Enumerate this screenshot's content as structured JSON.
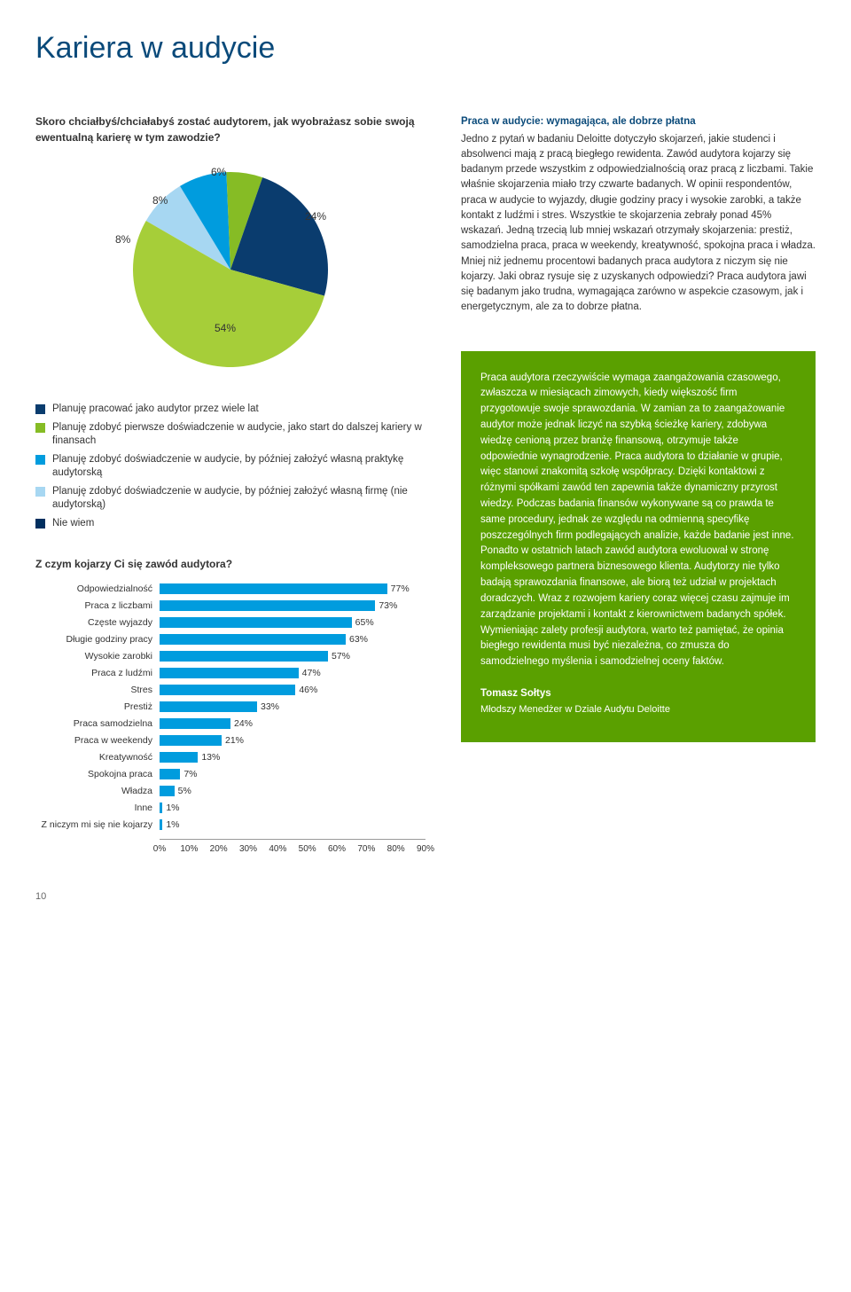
{
  "page_title": "Kariera w audycie",
  "pie": {
    "title": "Skoro chciałbyś/chciałabyś zostać audytorem, jak wyobrażasz sobie swoją ewentualną karierę w tym zawodzie?",
    "slices": [
      {
        "label": "Planuję pracować jako audytor przez wiele lat",
        "value": 54,
        "color": "#0a3c6e"
      },
      {
        "label": "Planuję zdobyć pierwsze doświadczenie w audycie, jako start do dalszej kariery w finansach",
        "value": 24,
        "color": "#86bc25"
      },
      {
        "label": "Planuję zdobyć doświadczenie w audycie, by później założyć własną praktykę audytorską",
        "value": 6,
        "color": "#009cde"
      },
      {
        "label": "Planuję zdobyć doświadczenie w audycie, by później założyć własną firmę (nie audytorską)",
        "value": 8,
        "color": "#a7d7f2"
      },
      {
        "label": "Nie wiem",
        "value": 8,
        "color": "#002f5f"
      }
    ],
    "label_fontsize": 12
  },
  "body1": {
    "lead": "Praca w audycie: wymagająca, ale dobrze płatna",
    "text": "Jedno z pytań w badaniu Deloitte dotyczyło skojarzeń, jakie studenci i absolwenci mają z pracą biegłego rewidenta. Zawód audytora kojarzy się badanym przede wszystkim z odpowiedzialnością oraz pracą z liczbami. Takie właśnie skojarzenia miało trzy czwarte badanych. W opinii respondentów, praca w audycie to wyjazdy, długie godziny pracy i wysokie zarobki, a także kontakt z ludźmi i stres. Wszystkie te skojarzenia zebrały ponad 45% wskazań. Jedną trzecią lub mniej wskazań otrzymały skojarzenia: prestiż, samodzielna praca, praca w weekendy, kreatywność, spokojna praca i władza. Mniej niż jednemu procentowi badanych praca audytora z niczym się nie kojarzy. Jaki obraz rysuje się z uzyskanych odpowiedzi? Praca audytora jawi się badanym jako trudna, wymagająca zarówno w aspekcie czasowym, jak i energetycznym, ale za to dobrze płatna."
  },
  "greenbox": {
    "text": "Praca audytora rzeczywiście wymaga zaangażowania czasowego, zwłaszcza w miesiącach zimowych, kiedy większość firm przygotowuje swoje sprawozdania. W zamian za to zaangażowanie audytor może jednak liczyć na szybką ścieżkę kariery, zdobywa wiedzę cenioną przez branżę finansową, otrzymuje także odpowiednie wynagrodzenie. Praca audytora to działanie w grupie, więc stanowi znakomitą szkołę współpracy. Dzięki kontaktowi z różnymi spółkami zawód ten zapewnia także dynamiczny przyrost wiedzy. Podczas badania finansów wykonywane są co prawda te same procedury, jednak ze względu na odmienną specyfikę poszczególnych firm podlegających analizie, każde badanie jest inne. Ponadto w ostatnich latach zawód audytora ewoluował w stronę kompleksowego partnera biznesowego klienta. Audytorzy nie tylko badają sprawozdania finansowe, ale biorą też udział w projektach doradczych. Wraz z rozwojem kariery coraz więcej czasu zajmuje im zarządzanie projektami i kontakt z kierownictwem badanych spółek. Wymieniając zalety profesji audytora, warto też pamiętać, że opinia biegłego rewidenta musi być niezależna, co zmusza do samodzielnego myślenia i samodzielnej oceny faktów.",
    "author": "Tomasz Sołtys",
    "role": "Młodszy Menedżer w Dziale Audytu Deloitte",
    "bg_color": "#5aa000"
  },
  "bars": {
    "title": "Z czym kojarzy Ci się zawód audytora?",
    "bar_color": "#009cde",
    "xmax": 90,
    "xtick_step": 10,
    "items": [
      {
        "cat": "Odpowiedzialność",
        "val": 77
      },
      {
        "cat": "Praca z liczbami",
        "val": 73
      },
      {
        "cat": "Częste wyjazdy",
        "val": 65
      },
      {
        "cat": "Długie godziny pracy",
        "val": 63
      },
      {
        "cat": "Wysokie zarobki",
        "val": 57
      },
      {
        "cat": "Praca z ludźmi",
        "val": 47
      },
      {
        "cat": "Stres",
        "val": 46
      },
      {
        "cat": "Prestiż",
        "val": 33
      },
      {
        "cat": "Praca samodzielna",
        "val": 24
      },
      {
        "cat": "Praca w weekendy",
        "val": 21
      },
      {
        "cat": "Kreatywność",
        "val": 13
      },
      {
        "cat": "Spokojna praca",
        "val": 7
      },
      {
        "cat": "Władza",
        "val": 5
      },
      {
        "cat": "Inne",
        "val": 1
      },
      {
        "cat": "Z niczym mi się nie kojarzy",
        "val": 1
      }
    ]
  },
  "page_number": "10"
}
